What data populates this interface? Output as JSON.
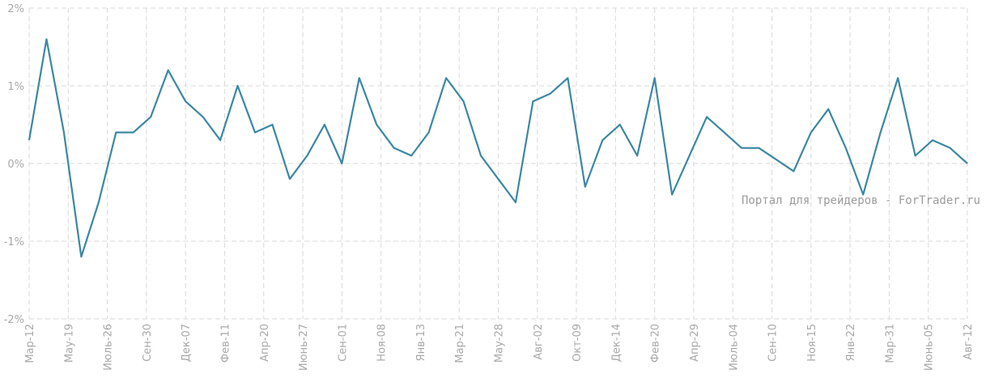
{
  "chart_data": {
    "type": "line",
    "title": "",
    "xlabel": "",
    "ylabel": "",
    "ylim": [
      -2,
      2
    ],
    "y_unit": "%",
    "y_ticks": [
      "2%",
      "1%",
      "0%",
      "-1%",
      "-2%"
    ],
    "y_tick_values": [
      2,
      1,
      0,
      -1,
      -2
    ],
    "x_tick_labels": [
      "Мар-12",
      "Мау-19",
      "Июль-26",
      "Сен-30",
      "Дек-07",
      "Фев-11",
      "Апр-20",
      "Июнь-27",
      "Сен-01",
      "Ноя-08",
      "Янв-13",
      "Мар-21",
      "Мау-28",
      "Авг-02",
      "Окт-09",
      "Дек-14",
      "Фев-20",
      "Апр-29",
      "Июль-04",
      "Сен-10",
      "Ноя-15",
      "Янв-22",
      "Мар-31",
      "Июнь-05",
      "Авг-12"
    ],
    "grid": true,
    "color": "#3b87a3",
    "series": [
      {
        "values": [
          0.3,
          1.6,
          0.4,
          -1.2,
          -0.5,
          0.4,
          0.4,
          0.6,
          1.2,
          0.8,
          0.6,
          0.3,
          1.0,
          0.4,
          0.5,
          -0.2,
          0.1,
          0.5,
          0.0,
          1.1,
          0.5,
          0.2,
          0.1,
          0.4,
          1.1,
          0.8,
          0.1,
          -0.2,
          -0.5,
          0.8,
          0.9,
          1.1,
          -0.3,
          0.3,
          0.5,
          0.1,
          1.1,
          -0.4,
          0.1,
          0.6,
          0.4,
          0.2,
          0.2,
          0.05,
          -0.1,
          0.4,
          0.7,
          0.2,
          -0.4,
          0.4,
          1.1,
          0.1,
          0.3,
          0.2,
          0.0
        ]
      }
    ]
  },
  "watermark": "Портал для трейдеров - ForTrader.ru"
}
